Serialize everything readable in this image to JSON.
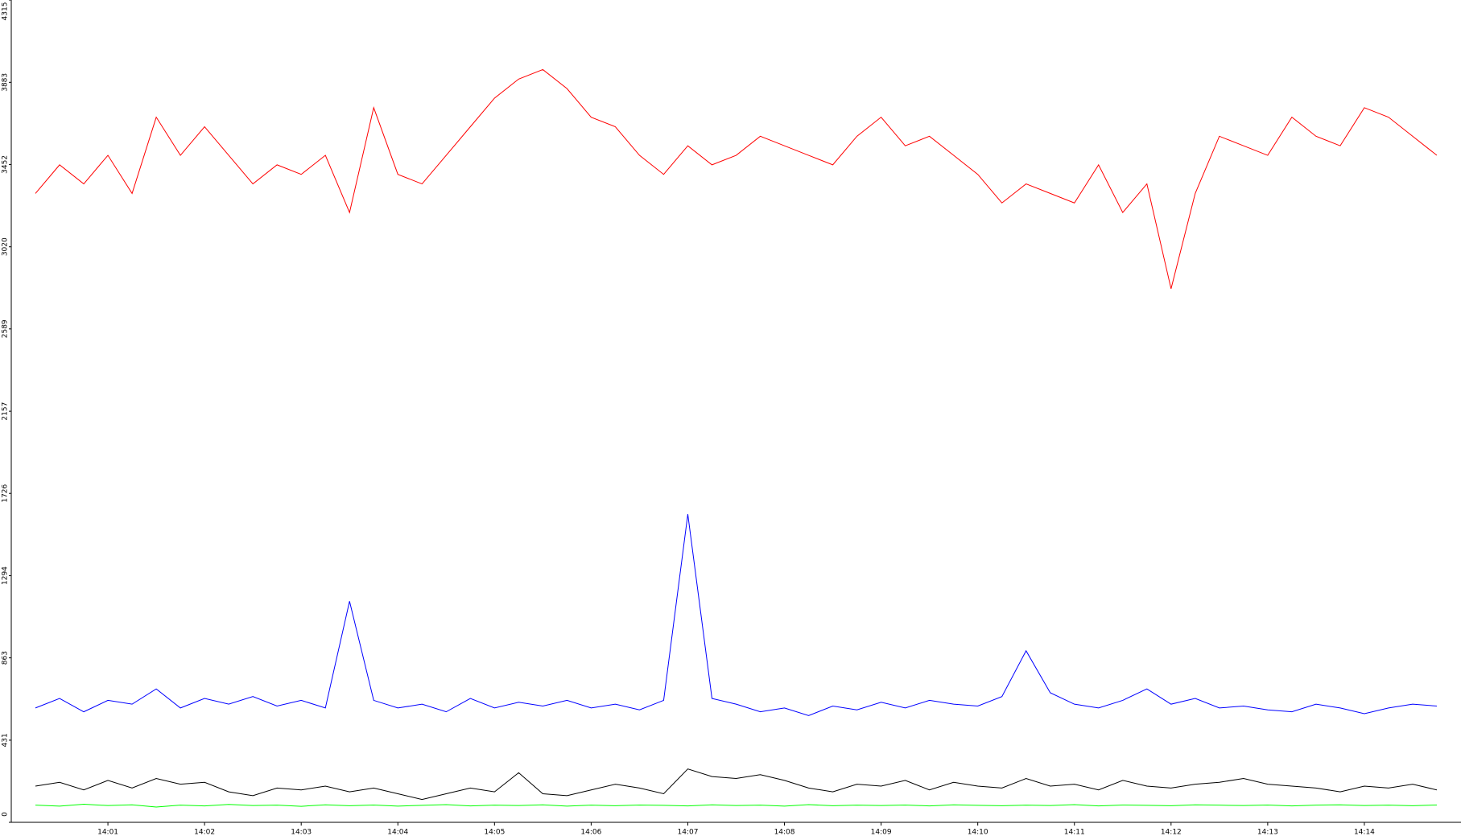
{
  "chart_data": {
    "type": "line",
    "x": [
      840.25,
      840.5,
      840.75,
      841,
      841.25,
      841.5,
      841.75,
      842,
      842.25,
      842.5,
      842.75,
      843,
      843.25,
      843.5,
      843.75,
      844,
      844.25,
      844.5,
      844.75,
      845,
      845.25,
      845.5,
      845.75,
      846,
      846.25,
      846.5,
      846.75,
      847,
      847.25,
      847.5,
      847.75,
      848,
      848.25,
      848.5,
      848.75,
      849,
      849.25,
      849.5,
      849.75,
      850,
      850.25,
      850.5,
      850.75,
      851,
      851.25,
      851.5,
      851.75,
      852,
      852.25,
      852.5,
      852.75,
      853,
      853.25,
      853.5,
      853.75,
      854,
      854.25,
      854.5,
      854.75
    ],
    "series": [
      {
        "color": "#ff0000",
        "values": [
          3300,
          3450,
          3350,
          3500,
          3300,
          3700,
          3500,
          3650,
          3500,
          3350,
          3450,
          3400,
          3500,
          3200,
          3750,
          3400,
          3350,
          3500,
          3650,
          3800,
          3900,
          3950,
          3850,
          3700,
          3650,
          3500,
          3400,
          3550,
          3450,
          3500,
          3600,
          3550,
          3500,
          3450,
          3600,
          3700,
          3550,
          3600,
          3500,
          3400,
          3250,
          3350,
          3300,
          3250,
          3450,
          3200,
          3350,
          2800,
          3300,
          3600,
          3550,
          3500,
          3700,
          3600,
          3550,
          3750,
          3700,
          3600,
          3500
        ]
      },
      {
        "color": "#0000ff",
        "values": [
          600,
          650,
          580,
          640,
          620,
          700,
          600,
          650,
          620,
          660,
          610,
          640,
          600,
          1160,
          640,
          600,
          620,
          580,
          650,
          600,
          630,
          610,
          640,
          600,
          620,
          590,
          640,
          1617,
          650,
          620,
          580,
          600,
          560,
          610,
          590,
          630,
          600,
          640,
          620,
          610,
          660,
          900,
          680,
          620,
          600,
          640,
          700,
          620,
          650,
          600,
          610,
          590,
          580,
          620,
          600,
          570,
          600,
          620,
          610
        ]
      },
      {
        "color": "#000000",
        "values": [
          190,
          210,
          170,
          220,
          180,
          230,
          200,
          210,
          160,
          140,
          180,
          170,
          190,
          160,
          180,
          150,
          120,
          150,
          180,
          160,
          260,
          150,
          140,
          170,
          200,
          180,
          150,
          280,
          240,
          230,
          250,
          220,
          180,
          160,
          200,
          190,
          220,
          170,
          210,
          190,
          180,
          230,
          190,
          200,
          170,
          220,
          190,
          180,
          200,
          210,
          230,
          200,
          190,
          180,
          160,
          190,
          180,
          200,
          170
        ]
      },
      {
        "color": "#00ff00",
        "values": [
          90,
          85,
          95,
          88,
          92,
          80,
          90,
          86,
          94,
          88,
          90,
          84,
          92,
          87,
          91,
          85,
          89,
          93,
          86,
          90,
          88,
          92,
          85,
          90,
          87,
          91,
          89,
          86,
          92,
          88,
          90,
          85,
          93,
          87,
          90,
          88,
          91,
          86,
          92,
          89,
          87,
          90,
          88,
          93,
          86,
          91,
          89,
          87,
          92,
          90,
          88,
          91,
          86,
          90,
          92,
          88,
          90,
          87,
          91
        ]
      }
    ],
    "xlim": [
      840,
      855
    ],
    "xticks": [
      {
        "value": 841,
        "label": "14:01"
      },
      {
        "value": 842,
        "label": "14:02"
      },
      {
        "value": 843,
        "label": "14:03"
      },
      {
        "value": 844,
        "label": "14:04"
      },
      {
        "value": 845,
        "label": "14:05"
      },
      {
        "value": 846,
        "label": "14:06"
      },
      {
        "value": 847,
        "label": "14:07"
      },
      {
        "value": 848,
        "label": "14:08"
      },
      {
        "value": 849,
        "label": "14:09"
      },
      {
        "value": 850,
        "label": "14:10"
      },
      {
        "value": 851,
        "label": "14:11"
      },
      {
        "value": 852,
        "label": "14:12"
      },
      {
        "value": 853,
        "label": "14:13"
      },
      {
        "value": 854,
        "label": "14:14"
      }
    ],
    "ylim": [
      0,
      4315
    ],
    "yticks": [
      0,
      431,
      863,
      1294,
      1726,
      2157,
      2589,
      3020,
      3452,
      3883,
      4315
    ]
  }
}
